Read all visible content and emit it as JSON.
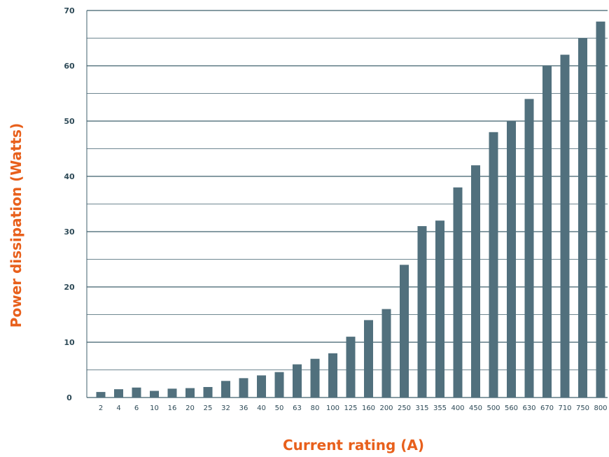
{
  "chart_data": {
    "type": "bar",
    "title": "",
    "xlabel": "Current rating (A)",
    "ylabel": "Power dissipation (Watts)",
    "ylim": [
      0,
      70
    ],
    "yticks": [
      0,
      10,
      20,
      30,
      40,
      50,
      60,
      70
    ],
    "minor_gridlines": true,
    "categories": [
      "2",
      "4",
      "6",
      "10",
      "16",
      "20",
      "25",
      "32",
      "36",
      "40",
      "50",
      "63",
      "80",
      "100",
      "125",
      "160",
      "200",
      "250",
      "315",
      "355",
      "400",
      "450",
      "500",
      "560",
      "630",
      "670",
      "710",
      "750",
      "800"
    ],
    "values": [
      1,
      1.5,
      1.8,
      1.2,
      1.6,
      1.7,
      1.9,
      3,
      3.5,
      4,
      4.6,
      6,
      7,
      8,
      11,
      14,
      16,
      24,
      31,
      32,
      38,
      42,
      48,
      50,
      54,
      60,
      62,
      65,
      68
    ],
    "colors": {
      "bar": "#51707d",
      "grid": "#3f5f6c",
      "axis_title": "#e8601c",
      "tick": "#2e4a57"
    }
  }
}
